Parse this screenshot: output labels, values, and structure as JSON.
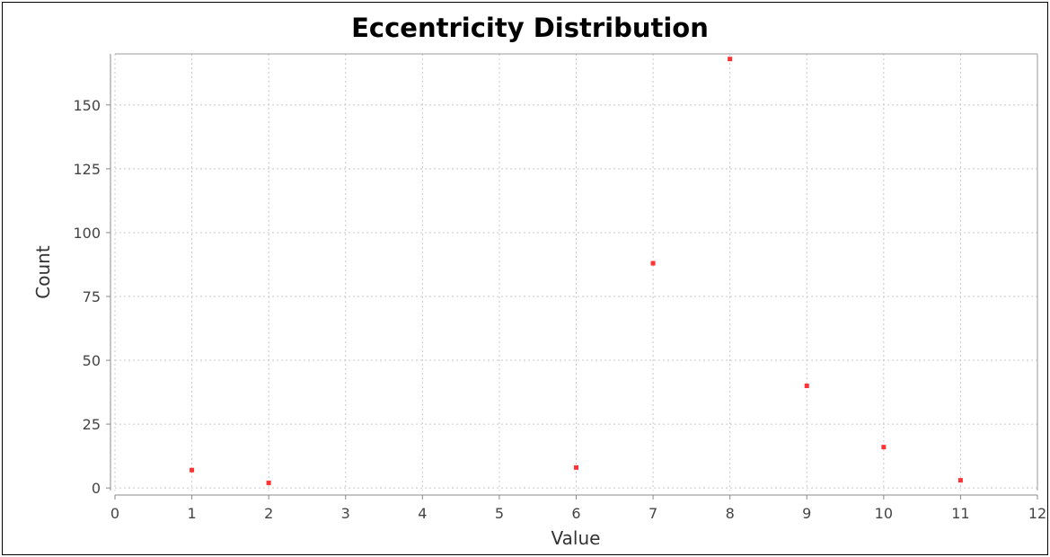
{
  "chart_data": {
    "type": "scatter",
    "title": "Eccentricity Distribution",
    "xlabel": "Value",
    "ylabel": "Count",
    "xlim": [
      0,
      12
    ],
    "ylim": [
      -1,
      170
    ],
    "xticks": [
      0,
      1,
      2,
      3,
      4,
      5,
      6,
      7,
      8,
      9,
      10,
      11,
      12
    ],
    "yticks": [
      0,
      25,
      50,
      75,
      100,
      125,
      150
    ],
    "grid": true,
    "legend": "none",
    "marker_color": "#ff3333",
    "points": [
      {
        "x": 1,
        "y": 7
      },
      {
        "x": 2,
        "y": 2
      },
      {
        "x": 6,
        "y": 8
      },
      {
        "x": 7,
        "y": 88
      },
      {
        "x": 8,
        "y": 168
      },
      {
        "x": 9,
        "y": 40
      },
      {
        "x": 10,
        "y": 16
      },
      {
        "x": 11,
        "y": 3
      }
    ]
  }
}
